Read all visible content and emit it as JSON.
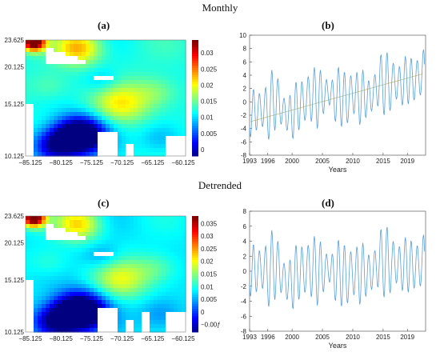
{
  "sections": {
    "top": "Monthly",
    "bottom": "Detrended"
  },
  "panel_labels": {
    "a": "(a)",
    "b": "(b)",
    "c": "(c)",
    "d": "(d)"
  },
  "chart_data": [
    {
      "id": "a",
      "type": "heatmap",
      "lat_ticks": [
        "23.625",
        "20.125",
        "15.125",
        "10.125"
      ],
      "lon_ticks": [
        "−85.125",
        "−80.125",
        "−75.125",
        "−70.125",
        "−65.125",
        "−60.125"
      ],
      "colorbar": {
        "ticks": [
          "0.03",
          "0.025",
          "0.02",
          "0.015",
          "0.01",
          "0.005",
          "0"
        ],
        "range": [
          -0.002,
          0.034
        ]
      },
      "colors": {
        "low": "#00008f",
        "mid": "#33c4ff",
        "high": "#8f0000"
      }
    },
    {
      "id": "b",
      "type": "line",
      "xlabel": "Years",
      "x_ticks": [
        "1993",
        "1996",
        "2000",
        "2005",
        "2010",
        "2015",
        "2019"
      ],
      "y_ticks": [
        "10",
        "8",
        "6",
        "4",
        "2",
        "0",
        "-2",
        "-4",
        "-6",
        "-8"
      ],
      "xlim": [
        1993,
        2022
      ],
      "ylim": [
        -8,
        10
      ],
      "trend": {
        "start": [
          1993,
          -3.0
        ],
        "end": [
          2021.5,
          4.2
        ],
        "color": "#c9c98a"
      },
      "series": [
        {
          "color": "#5a9fd4",
          "annual_amplitude": 4.0,
          "anomalies": [
            [
              1993,
              -1.5
            ],
            [
              1994,
              -1.5
            ],
            [
              1995,
              -1.0
            ],
            [
              1996,
              -1.5
            ],
            [
              1997,
              0.5
            ],
            [
              1998,
              -0.5
            ],
            [
              1999,
              -2.0
            ],
            [
              2000,
              -2.0
            ],
            [
              2001,
              -0.5
            ],
            [
              2002,
              0.0
            ],
            [
              2003,
              1.0
            ],
            [
              2004,
              0.5
            ],
            [
              2005,
              1.0
            ],
            [
              2006,
              1.5
            ],
            [
              2007,
              0.5
            ],
            [
              2008,
              1.0
            ],
            [
              2009,
              0.0
            ],
            [
              2010,
              1.5
            ],
            [
              2011,
              0.5
            ],
            [
              2012,
              1.0
            ],
            [
              2013,
              0.5
            ],
            [
              2014,
              2.5
            ],
            [
              2015,
              3.0
            ],
            [
              2016,
              2.5
            ],
            [
              2017,
              3.0
            ],
            [
              2018,
              2.5
            ],
            [
              2019,
              3.5
            ],
            [
              2020,
              3.0
            ],
            [
              2021,
              4.0
            ]
          ]
        }
      ]
    },
    {
      "id": "c",
      "type": "heatmap",
      "lat_ticks": [
        "23.625",
        "20.125",
        "15.125",
        "10.125"
      ],
      "lon_ticks": [
        "−85.125",
        "−80.125",
        "−75.125",
        "−70.125",
        "−65.125",
        "−60.125"
      ],
      "colorbar": {
        "ticks": [
          "0.035",
          "0.03",
          "0.025",
          "0.02",
          "0.015",
          "0.01",
          "0.005",
          "0",
          "−0.00ƒ"
        ],
        "range": [
          -0.008,
          0.038
        ]
      },
      "colors": {
        "low": "#00008f",
        "mid": "#33c4ff",
        "high": "#8f0000"
      }
    },
    {
      "id": "d",
      "type": "line",
      "xlabel": "Years",
      "x_ticks": [
        "1993",
        "1996",
        "2000",
        "2005",
        "2010",
        "2015",
        "2019"
      ],
      "y_ticks": [
        "8",
        "6",
        "4",
        "2",
        "0",
        "-2",
        "-4",
        "-6",
        "-8"
      ],
      "xlim": [
        1993,
        2022
      ],
      "ylim": [
        -8,
        8
      ],
      "series": [
        {
          "color": "#5a9fd4",
          "annual_amplitude": 4.0,
          "anomalies": [
            [
              1993,
              0.5
            ],
            [
              1994,
              0.0
            ],
            [
              1995,
              0.5
            ],
            [
              1996,
              -0.5
            ],
            [
              1997,
              1.0
            ],
            [
              1998,
              0.0
            ],
            [
              1999,
              -1.5
            ],
            [
              2000,
              -1.5
            ],
            [
              2001,
              0.0
            ],
            [
              2002,
              0.0
            ],
            [
              2003,
              0.5
            ],
            [
              2004,
              0.0
            ],
            [
              2005,
              0.0
            ],
            [
              2006,
              0.5
            ],
            [
              2007,
              -0.5
            ],
            [
              2008,
              0.0
            ],
            [
              2009,
              -1.0
            ],
            [
              2010,
              0.0
            ],
            [
              2011,
              -0.5
            ],
            [
              2012,
              0.0
            ],
            [
              2013,
              -0.5
            ],
            [
              2014,
              1.0
            ],
            [
              2015,
              1.5
            ],
            [
              2016,
              1.0
            ],
            [
              2017,
              1.0
            ],
            [
              2018,
              0.5
            ],
            [
              2019,
              1.0
            ],
            [
              2020,
              0.5
            ],
            [
              2021,
              1.0
            ]
          ]
        }
      ]
    }
  ]
}
